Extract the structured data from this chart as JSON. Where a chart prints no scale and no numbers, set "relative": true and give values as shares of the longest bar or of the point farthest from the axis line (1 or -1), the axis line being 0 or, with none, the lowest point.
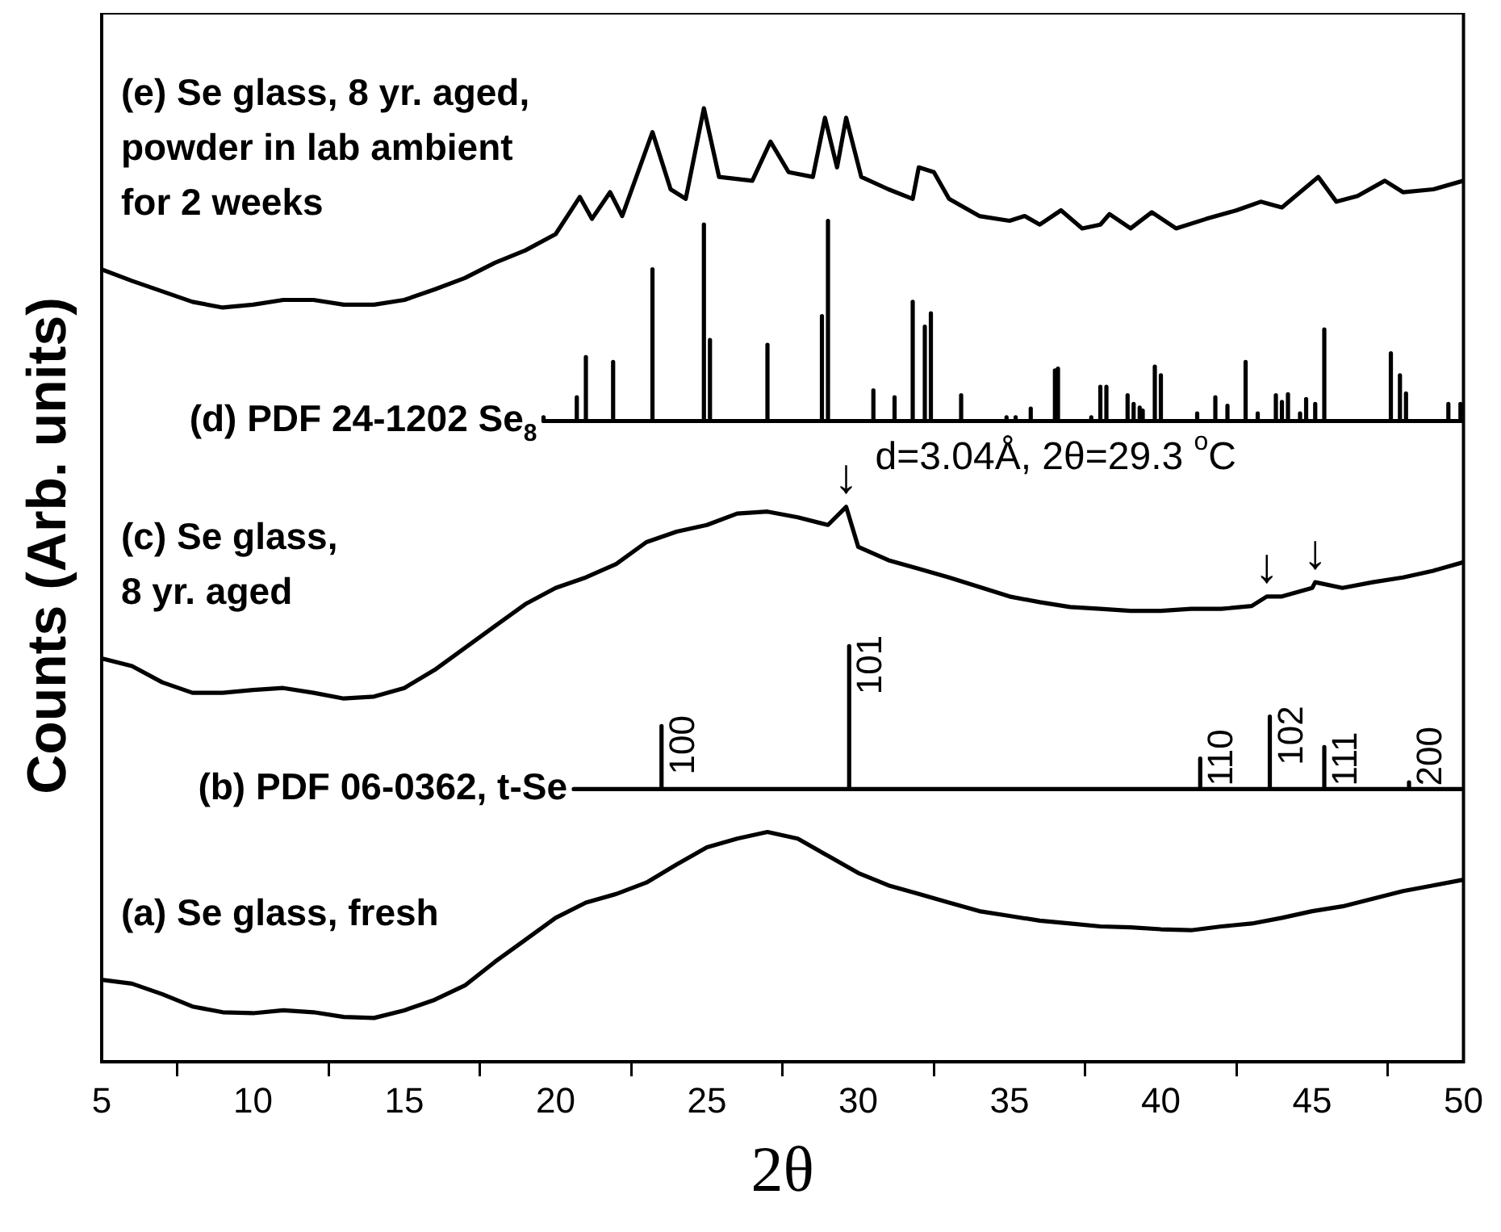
{
  "chart_data": {
    "type": "line",
    "relative": true,
    "xlabel": "2θ",
    "ylabel": "Counts (Arb. units)",
    "xlim": [
      5,
      50
    ],
    "xticks": [
      5,
      10,
      15,
      20,
      25,
      30,
      35,
      40,
      45,
      50
    ],
    "series": [
      {
        "name": "(a) Se glass, fresh",
        "color": "#000000",
        "x": [
          5,
          6,
          7,
          8,
          9,
          10,
          11,
          12,
          13,
          14,
          15,
          16,
          17,
          18,
          19,
          20,
          21,
          22,
          23,
          24,
          25,
          26,
          27,
          28,
          29,
          30,
          31,
          32,
          33,
          34,
          35,
          36,
          37,
          38,
          39,
          40,
          41,
          42,
          43,
          44,
          45,
          46,
          47,
          48,
          49,
          50
        ],
        "values": [
          0.086,
          0.082,
          0.071,
          0.058,
          0.052,
          0.051,
          0.054,
          0.052,
          0.047,
          0.046,
          0.054,
          0.065,
          0.08,
          0.105,
          0.128,
          0.151,
          0.167,
          0.176,
          0.188,
          0.207,
          0.225,
          0.234,
          0.241,
          0.234,
          0.216,
          0.198,
          0.185,
          0.176,
          0.167,
          0.158,
          0.153,
          0.148,
          0.145,
          0.142,
          0.141,
          0.139,
          0.138,
          0.142,
          0.145,
          0.151,
          0.158,
          0.163,
          0.171,
          0.179,
          0.185,
          0.191
        ]
      },
      {
        "name": "(b) PDF 06-0362, t-Se",
        "color": "#000000",
        "x": [
          20.6,
          23.5,
          23.5,
          23.5,
          29.7,
          29.7,
          29.7,
          41.3,
          41.3,
          41.3,
          43.6,
          43.6,
          43.6,
          45.4,
          45.4,
          45.4,
          48.2,
          48.2,
          48.2,
          50
        ],
        "values": [
          0.286,
          0.286,
          0.352,
          0.286,
          0.286,
          0.436,
          0.286,
          0.286,
          0.318,
          0.286,
          0.286,
          0.362,
          0.286,
          0.286,
          0.33,
          0.286,
          0.286,
          0.293,
          0.286,
          0.286
        ]
      },
      {
        "name": "(c) Se glass,\n8 yr. aged",
        "color": "#000000",
        "x": [
          5,
          6,
          7,
          8,
          9,
          10,
          11,
          12,
          13,
          14,
          15,
          16,
          17,
          18,
          19,
          20,
          21,
          22,
          23,
          24,
          25,
          26,
          27,
          28,
          29,
          29.6,
          30,
          31,
          32,
          33,
          34,
          35,
          36,
          37,
          38,
          39,
          40,
          41,
          42,
          43,
          43.5,
          44,
          45,
          45.1,
          46,
          47,
          48,
          49,
          50
        ],
        "values": [
          0.423,
          0.415,
          0.398,
          0.387,
          0.387,
          0.39,
          0.392,
          0.387,
          0.381,
          0.383,
          0.392,
          0.411,
          0.434,
          0.457,
          0.48,
          0.497,
          0.508,
          0.522,
          0.545,
          0.556,
          0.563,
          0.575,
          0.577,
          0.571,
          0.563,
          0.582,
          0.54,
          0.526,
          0.517,
          0.508,
          0.498,
          0.488,
          0.482,
          0.477,
          0.475,
          0.473,
          0.473,
          0.475,
          0.475,
          0.478,
          0.488,
          0.488,
          0.497,
          0.503,
          0.497,
          0.503,
          0.508,
          0.515,
          0.524
        ]
      },
      {
        "name": "(d) PDF 24-1202 Se$_{8}$",
        "color": "#000000",
        "x": [
          19.6,
          19.6,
          19.6,
          19.6,
          20.7,
          20.7,
          20.7,
          21.0,
          21.0,
          21.0,
          21.9,
          21.9,
          21.9,
          23.2,
          23.2,
          23.2,
          24.9,
          24.9,
          24.9,
          25.1,
          25.1,
          25.1,
          27.0,
          27.0,
          27.0,
          28.8,
          28.8,
          28.8,
          29.0,
          29.0,
          29.0,
          30.5,
          30.5,
          30.5,
          31.2,
          31.2,
          31.2,
          31.8,
          31.8,
          31.8,
          32.2,
          32.2,
          32.2,
          32.4,
          32.4,
          32.4,
          33.4,
          33.4,
          33.4,
          34.9,
          34.9,
          34.9,
          35.2,
          35.2,
          35.2,
          35.7,
          35.7,
          35.7,
          36.5,
          36.5,
          36.5,
          36.6,
          36.6,
          36.6,
          37.7,
          37.7,
          37.7,
          38.0,
          38.0,
          38.0,
          38.2,
          38.2,
          38.2,
          38.9,
          38.9,
          38.9,
          39.1,
          39.1,
          39.1,
          39.3,
          39.3,
          39.3,
          39.4,
          39.4,
          39.4,
          39.8,
          39.8,
          39.8,
          40.0,
          40.0,
          40.0,
          41.2,
          41.2,
          41.2,
          41.8,
          41.8,
          41.8,
          42.2,
          42.2,
          42.2,
          42.8,
          42.8,
          42.8,
          43.2,
          43.2,
          43.2,
          43.8,
          43.8,
          43.8,
          44.0,
          44.0,
          44.0,
          44.2,
          44.2,
          44.2,
          44.6,
          44.6,
          44.6,
          44.8,
          44.8,
          44.8,
          45.1,
          45.1,
          45.1,
          45.4,
          45.4,
          45.4,
          47.6,
          47.6,
          47.6,
          47.9,
          47.9,
          47.9,
          48.1,
          48.1,
          48.1,
          49.5,
          49.5,
          49.5,
          49.9,
          49.9,
          49.9,
          50
        ],
        "values": [
          0.672,
          0.672,
          0.676,
          0.672,
          0.672,
          0.697,
          0.672,
          0.672,
          0.739,
          0.672,
          0.672,
          0.734,
          0.672,
          0.672,
          0.831,
          0.672,
          0.672,
          0.878,
          0.672,
          0.672,
          0.757,
          0.672,
          0.672,
          0.752,
          0.672,
          0.672,
          0.782,
          0.672,
          0.672,
          0.882,
          0.672,
          0.672,
          0.704,
          0.672,
          0.672,
          0.697,
          0.672,
          0.672,
          0.797,
          0.672,
          0.672,
          0.771,
          0.672,
          0.672,
          0.785,
          0.672,
          0.672,
          0.699,
          0.672,
          0.672,
          0.676,
          0.672,
          0.672,
          0.676,
          0.672,
          0.672,
          0.685,
          0.672,
          0.672,
          0.725,
          0.672,
          0.672,
          0.727,
          0.672,
          0.672,
          0.676,
          0.672,
          0.672,
          0.708,
          0.672,
          0.672,
          0.708,
          0.672,
          0.672,
          0.699,
          0.672,
          0.672,
          0.69,
          0.672,
          0.672,
          0.686,
          0.672,
          0.672,
          0.683,
          0.672,
          0.672,
          0.729,
          0.672,
          0.672,
          0.72,
          0.672,
          0.672,
          0.68,
          0.672,
          0.672,
          0.697,
          0.672,
          0.672,
          0.688,
          0.672,
          0.672,
          0.734,
          0.672,
          0.672,
          0.68,
          0.672,
          0.672,
          0.699,
          0.672,
          0.672,
          0.692,
          0.672,
          0.672,
          0.7,
          0.672,
          0.672,
          0.68,
          0.672,
          0.672,
          0.695,
          0.672,
          0.672,
          0.69,
          0.672,
          0.672,
          0.768,
          0.672,
          0.672,
          0.743,
          0.672,
          0.672,
          0.72,
          0.672,
          0.672,
          0.701,
          0.672,
          0.672,
          0.69,
          0.672,
          0.672,
          0.69,
          0.672,
          0.672
        ]
      },
      {
        "name": "(e) Se glass, 8 yr. aged,\npowder in lab ambient\nfor 2 weeks",
        "color": "#000000",
        "x": [
          5,
          6,
          7,
          8,
          9,
          10,
          11,
          12,
          13,
          14,
          15,
          16,
          17,
          18,
          19,
          20,
          20.8,
          21.2,
          21.8,
          22.2,
          23.2,
          23.8,
          24.3,
          24.9,
          25.4,
          26.5,
          27.1,
          27.7,
          28.5,
          28.9,
          29.3,
          29.6,
          30.1,
          31,
          31.8,
          32,
          32.5,
          33,
          34,
          35,
          35.5,
          36,
          36.7,
          37.4,
          38,
          38.3,
          39,
          39.7,
          40.5,
          41.5,
          42.5,
          43.3,
          44,
          45.2,
          45.8,
          46.5,
          47.4,
          48,
          49,
          50
        ],
        "values": [
          0.831,
          0.819,
          0.808,
          0.797,
          0.791,
          0.794,
          0.799,
          0.799,
          0.794,
          0.794,
          0.799,
          0.81,
          0.822,
          0.838,
          0.851,
          0.868,
          0.907,
          0.884,
          0.912,
          0.887,
          0.975,
          0.915,
          0.905,
          1.0,
          0.928,
          0.924,
          0.965,
          0.933,
          0.928,
          0.99,
          0.938,
          0.99,
          0.928,
          0.915,
          0.905,
          0.938,
          0.933,
          0.905,
          0.887,
          0.882,
          0.887,
          0.878,
          0.893,
          0.874,
          0.878,
          0.889,
          0.874,
          0.891,
          0.874,
          0.884,
          0.893,
          0.902,
          0.896,
          0.928,
          0.902,
          0.908,
          0.924,
          0.912,
          0.915,
          0.924
        ]
      }
    ],
    "annotations": [
      {
        "text": "100",
        "x": 23.5,
        "y": 0.352
      },
      {
        "text": "101",
        "x": 29.7,
        "y": 0.436
      },
      {
        "text": "110",
        "x": 41.3,
        "y": 0.318
      },
      {
        "text": "102",
        "x": 43.6,
        "y": 0.362
      },
      {
        "text": "111",
        "x": 45.4,
        "y": 0.33
      },
      {
        "text": "200",
        "x": 48.2,
        "y": 0.293
      },
      {
        "text": "d=3.04Å, 2θ=29.3 $^{o}$C",
        "x": 29.6,
        "y": 0.582
      },
      {
        "text": "↓",
        "x": 29.6,
        "y": 0.582
      },
      {
        "text": "↓",
        "x": 43.5,
        "y": 0.488
      },
      {
        "text": "↓",
        "x": 45.1,
        "y": 0.503
      }
    ]
  }
}
